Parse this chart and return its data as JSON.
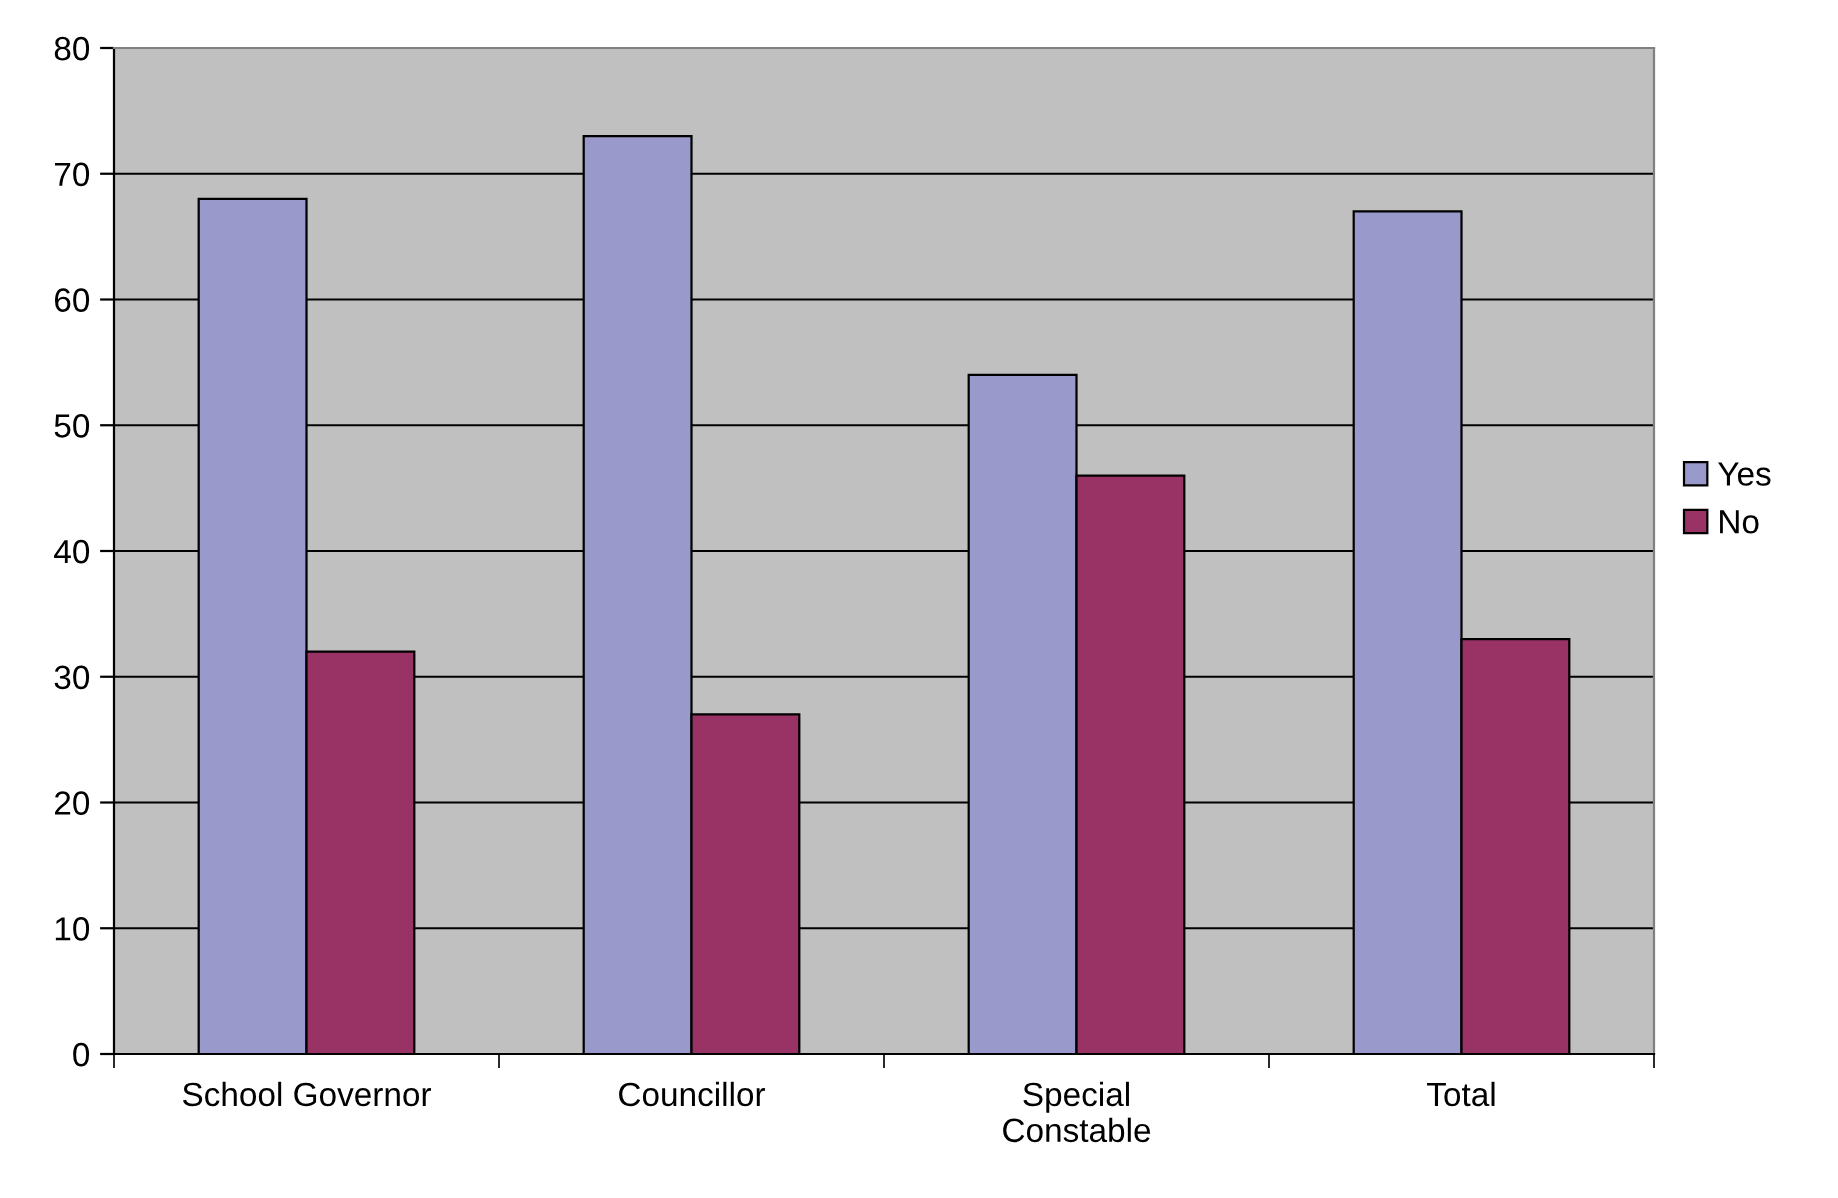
{
  "chart_data": {
    "type": "bar",
    "categories": [
      "School Governor",
      "Councillor",
      "Special\nConstable",
      "Total"
    ],
    "series": [
      {
        "name": "Yes",
        "color": "#9999cc",
        "values": [
          68,
          73,
          54,
          67
        ]
      },
      {
        "name": "No",
        "color": "#993366",
        "values": [
          32,
          27,
          46,
          33
        ]
      }
    ],
    "ylim": [
      0,
      80
    ],
    "yticks": [
      0,
      10,
      20,
      30,
      40,
      50,
      60,
      70,
      80
    ],
    "grid": "y",
    "legend": "right"
  }
}
